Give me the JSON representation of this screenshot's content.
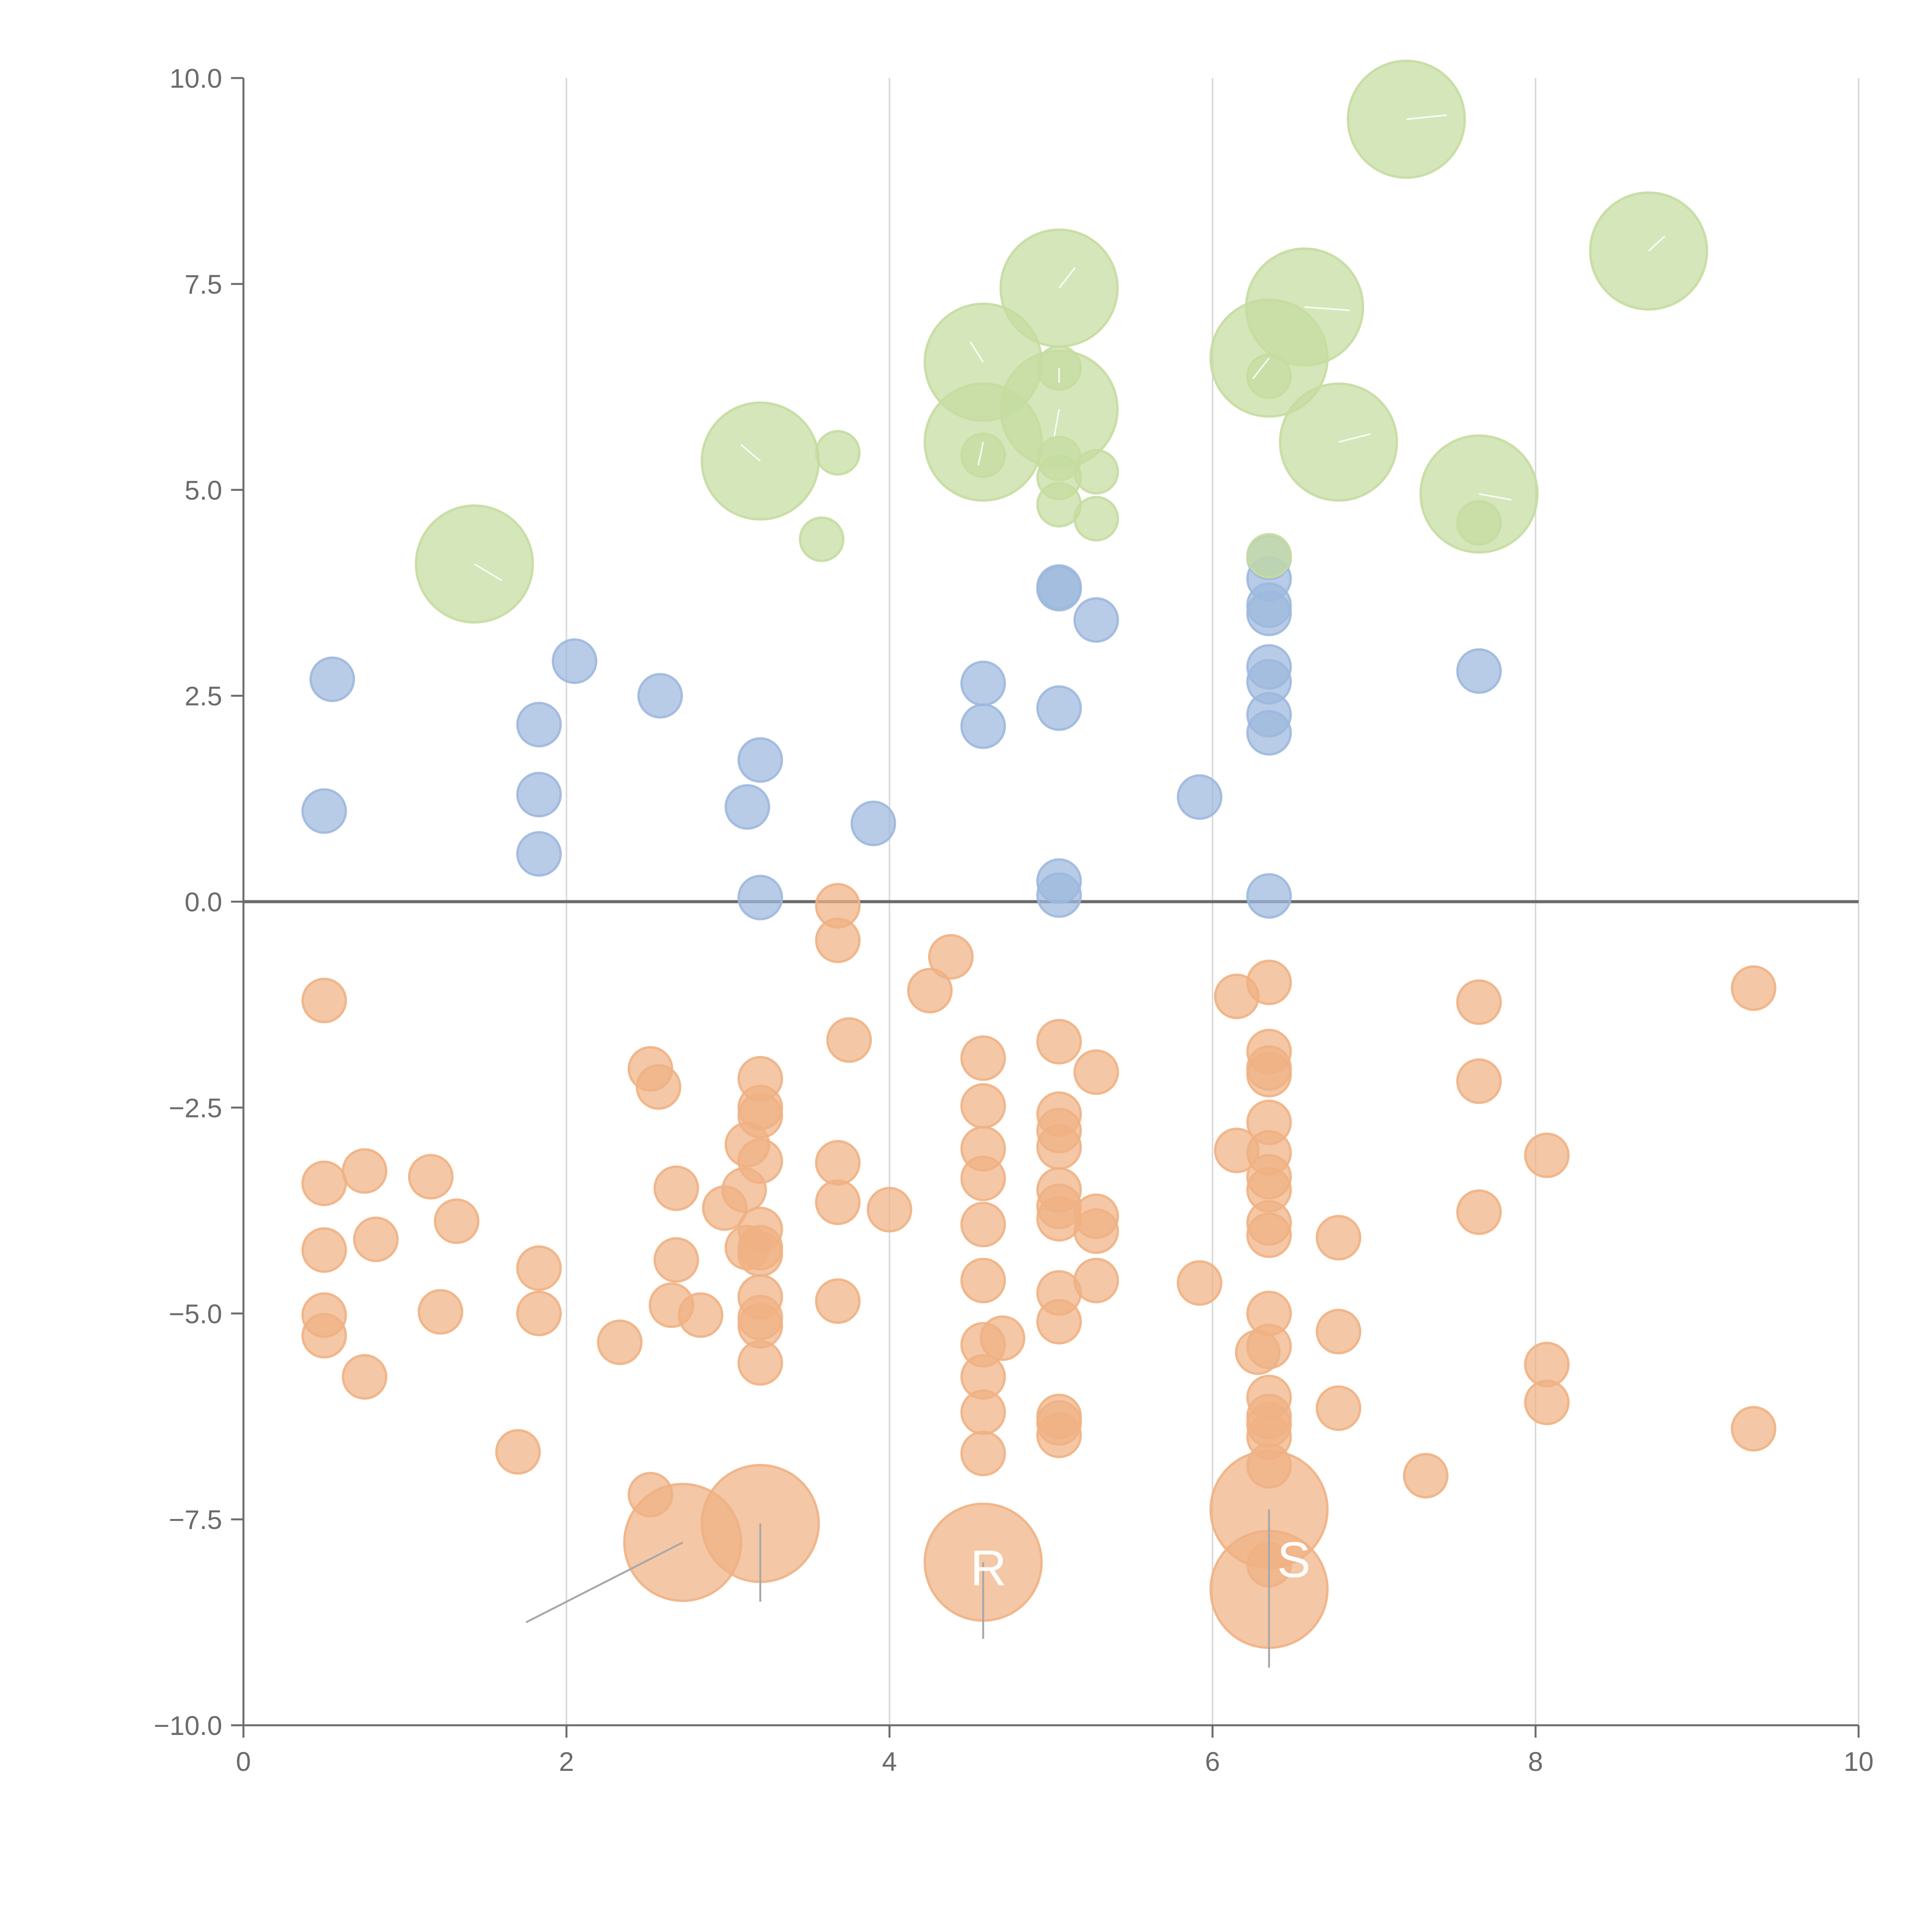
{
  "chart_data": {
    "type": "scatter",
    "title": "",
    "xlabel": "",
    "ylabel": "",
    "xlim": [
      0,
      10
    ],
    "ylim": [
      -10,
      10
    ],
    "x_ticks": [
      "0",
      "2",
      "4",
      "6",
      "8",
      "10"
    ],
    "y_ticks": [
      "−10.0",
      "−7.5",
      "−5.0",
      "−2.5",
      "0.0",
      "2.5",
      "5.0",
      "7.5",
      "10.0"
    ],
    "x_tick_values": [
      0,
      2,
      4,
      6,
      8,
      10
    ],
    "y_tick_values": [
      -10,
      -7.5,
      -5,
      -2.5,
      0,
      2.5,
      5,
      7.5,
      10
    ],
    "grid": "vertical",
    "reference_line_y": 0,
    "series": [
      {
        "color": "#f0b183",
        "points": [
          [
            0.5,
            -1.2,
            1
          ],
          [
            3.68,
            -0.05,
            1
          ],
          [
            3.68,
            -0.47,
            1
          ],
          [
            4.38,
            -0.67,
            1
          ],
          [
            4.25,
            -1.08,
            1
          ],
          [
            6.15,
            -1.15,
            1
          ],
          [
            6.35,
            -0.98,
            1
          ],
          [
            7.65,
            -1.22,
            1
          ],
          [
            9.35,
            -1.05,
            1
          ],
          [
            3.75,
            -1.68,
            1
          ],
          [
            5.05,
            -1.7,
            1
          ],
          [
            4.58,
            -1.9,
            1
          ],
          [
            6.35,
            -1.82,
            1
          ],
          [
            6.35,
            -2.02,
            1
          ],
          [
            6.35,
            -2.1,
            1
          ],
          [
            5.28,
            -2.07,
            1
          ],
          [
            2.52,
            -2.03,
            1
          ],
          [
            2.57,
            -2.25,
            1
          ],
          [
            3.2,
            -2.15,
            1
          ],
          [
            3.2,
            -2.5,
            1
          ],
          [
            3.2,
            -2.6,
            1
          ],
          [
            7.65,
            -2.18,
            1
          ],
          [
            4.58,
            -2.48,
            1
          ],
          [
            5.05,
            -2.58,
            1
          ],
          [
            5.05,
            -2.78,
            1
          ],
          [
            6.35,
            -2.68,
            1
          ],
          [
            3.12,
            -2.95,
            1
          ],
          [
            4.58,
            -3.0,
            1
          ],
          [
            5.05,
            -2.98,
            1
          ],
          [
            6.15,
            -3.02,
            1
          ],
          [
            6.35,
            -3.05,
            1
          ],
          [
            8.07,
            -3.08,
            1
          ],
          [
            3.2,
            -3.15,
            1
          ],
          [
            3.68,
            -3.17,
            1
          ],
          [
            0.75,
            -3.27,
            1
          ],
          [
            1.16,
            -3.34,
            1
          ],
          [
            4.58,
            -3.36,
            1
          ],
          [
            6.35,
            -3.34,
            1
          ],
          [
            0.5,
            -3.42,
            1
          ],
          [
            2.68,
            -3.48,
            1
          ],
          [
            3.1,
            -3.5,
            1
          ],
          [
            5.05,
            -3.5,
            1
          ],
          [
            6.35,
            -3.5,
            1
          ],
          [
            3.68,
            -3.65,
            1
          ],
          [
            2.98,
            -3.72,
            1
          ],
          [
            4.0,
            -3.74,
            1
          ],
          [
            5.05,
            -3.7,
            1
          ],
          [
            5.05,
            -3.85,
            1
          ],
          [
            5.28,
            -3.82,
            1
          ],
          [
            7.65,
            -3.77,
            1
          ],
          [
            1.32,
            -3.88,
            1
          ],
          [
            4.58,
            -3.92,
            1
          ],
          [
            6.35,
            -3.9,
            1
          ],
          [
            3.2,
            -3.98,
            1
          ],
          [
            5.28,
            -4.0,
            1
          ],
          [
            0.82,
            -4.1,
            1
          ],
          [
            6.35,
            -4.05,
            1
          ],
          [
            6.78,
            -4.08,
            1
          ],
          [
            0.5,
            -4.23,
            1
          ],
          [
            3.12,
            -4.2,
            1
          ],
          [
            3.2,
            -4.2,
            1
          ],
          [
            3.2,
            -4.28,
            1
          ],
          [
            1.83,
            -4.45,
            1
          ],
          [
            2.68,
            -4.35,
            1
          ],
          [
            4.58,
            -4.6,
            1
          ],
          [
            5.28,
            -4.6,
            1
          ],
          [
            5.92,
            -4.63,
            1
          ],
          [
            3.2,
            -4.8,
            1
          ],
          [
            3.68,
            -4.85,
            1
          ],
          [
            5.05,
            -4.75,
            1
          ],
          [
            2.65,
            -4.9,
            1
          ],
          [
            0.5,
            -5.02,
            1
          ],
          [
            1.22,
            -4.98,
            1
          ],
          [
            1.83,
            -5.0,
            1
          ],
          [
            2.83,
            -5.02,
            1
          ],
          [
            6.35,
            -5.0,
            1
          ],
          [
            3.2,
            -5.05,
            1
          ],
          [
            3.2,
            -5.15,
            1
          ],
          [
            5.05,
            -5.1,
            1
          ],
          [
            6.78,
            -5.22,
            1
          ],
          [
            0.5,
            -5.27,
            1
          ],
          [
            4.7,
            -5.3,
            1
          ],
          [
            2.33,
            -5.35,
            1
          ],
          [
            4.58,
            -5.38,
            1
          ],
          [
            6.35,
            -5.4,
            1
          ],
          [
            6.28,
            -5.47,
            1
          ],
          [
            3.2,
            -5.6,
            1
          ],
          [
            8.07,
            -5.62,
            1
          ],
          [
            0.75,
            -5.77,
            1
          ],
          [
            4.58,
            -5.77,
            1
          ],
          [
            6.35,
            -6.02,
            1
          ],
          [
            8.07,
            -6.08,
            1
          ],
          [
            6.78,
            -6.15,
            1
          ],
          [
            4.58,
            -6.2,
            1
          ],
          [
            5.05,
            -6.25,
            1
          ],
          [
            5.05,
            -6.33,
            1
          ],
          [
            6.35,
            -6.25,
            1
          ],
          [
            6.35,
            -6.35,
            1
          ],
          [
            5.05,
            -6.48,
            1
          ],
          [
            6.35,
            -6.5,
            1
          ],
          [
            9.35,
            -6.4,
            1
          ],
          [
            1.7,
            -6.68,
            1
          ],
          [
            4.58,
            -6.7,
            1
          ],
          [
            6.35,
            -6.85,
            1
          ],
          [
            7.32,
            -6.97,
            1
          ],
          [
            2.52,
            -7.2,
            1
          ],
          [
            6.35,
            -8.05,
            1
          ],
          [
            2.72,
            -7.78,
            2.7
          ],
          [
            3.2,
            -7.55,
            2.7
          ],
          [
            4.58,
            -8.02,
            2.7
          ],
          [
            6.35,
            -7.38,
            2.7
          ],
          [
            6.35,
            -8.35,
            2.7
          ]
        ]
      },
      {
        "color": "#9db8de",
        "points": [
          [
            0.55,
            2.7,
            1
          ],
          [
            0.5,
            1.1,
            1
          ],
          [
            1.83,
            2.15,
            1
          ],
          [
            1.83,
            1.3,
            1
          ],
          [
            1.83,
            0.58,
            1
          ],
          [
            2.05,
            2.92,
            1
          ],
          [
            2.58,
            2.5,
            1
          ],
          [
            3.2,
            1.72,
            1
          ],
          [
            3.12,
            1.15,
            1
          ],
          [
            3.2,
            0.05,
            1
          ],
          [
            3.9,
            0.95,
            1
          ],
          [
            4.58,
            2.65,
            1
          ],
          [
            4.58,
            2.13,
            1
          ],
          [
            5.05,
            3.82,
            1
          ],
          [
            5.05,
            3.8,
            1
          ],
          [
            5.28,
            3.42,
            1
          ],
          [
            5.05,
            2.35,
            1
          ],
          [
            5.05,
            0.25,
            1
          ],
          [
            5.05,
            0.08,
            1
          ],
          [
            5.92,
            1.27,
            1
          ],
          [
            6.35,
            4.18,
            1
          ],
          [
            6.35,
            3.92,
            1
          ],
          [
            6.35,
            3.6,
            1
          ],
          [
            6.35,
            3.5,
            1
          ],
          [
            6.35,
            2.85,
            1
          ],
          [
            6.35,
            2.67,
            1
          ],
          [
            6.35,
            2.27,
            1
          ],
          [
            6.35,
            2.05,
            1
          ],
          [
            6.35,
            0.07,
            1
          ],
          [
            7.65,
            2.8,
            1
          ]
        ]
      },
      {
        "color": "#c5dca0",
        "points": [
          [
            3.58,
            4.4,
            1
          ],
          [
            3.68,
            5.45,
            1
          ],
          [
            4.58,
            5.42,
            1
          ],
          [
            5.05,
            6.48,
            1
          ],
          [
            5.05,
            5.38,
            1
          ],
          [
            5.05,
            5.15,
            1
          ],
          [
            5.05,
            4.82,
            1
          ],
          [
            5.28,
            5.22,
            1
          ],
          [
            5.28,
            4.65,
            1
          ],
          [
            6.35,
            6.38,
            1
          ],
          [
            6.35,
            4.2,
            1
          ],
          [
            7.65,
            4.6,
            1
          ],
          [
            1.43,
            4.1,
            2.7
          ],
          [
            3.2,
            5.35,
            2.7
          ],
          [
            4.58,
            6.55,
            2.7
          ],
          [
            4.58,
            5.58,
            2.7
          ],
          [
            5.05,
            7.45,
            2.7
          ],
          [
            5.05,
            5.98,
            2.7
          ],
          [
            6.35,
            6.6,
            2.7
          ],
          [
            6.57,
            7.22,
            2.7
          ],
          [
            6.78,
            5.58,
            2.7
          ],
          [
            7.2,
            9.5,
            2.7
          ],
          [
            7.65,
            4.95,
            2.7
          ],
          [
            8.7,
            7.9,
            2.7
          ]
        ]
      }
    ],
    "annotations": [
      {
        "text": "R",
        "x": 4.5,
        "y": -8.3
      },
      {
        "text": "S",
        "x": 6.4,
        "y": -8.2
      }
    ]
  }
}
